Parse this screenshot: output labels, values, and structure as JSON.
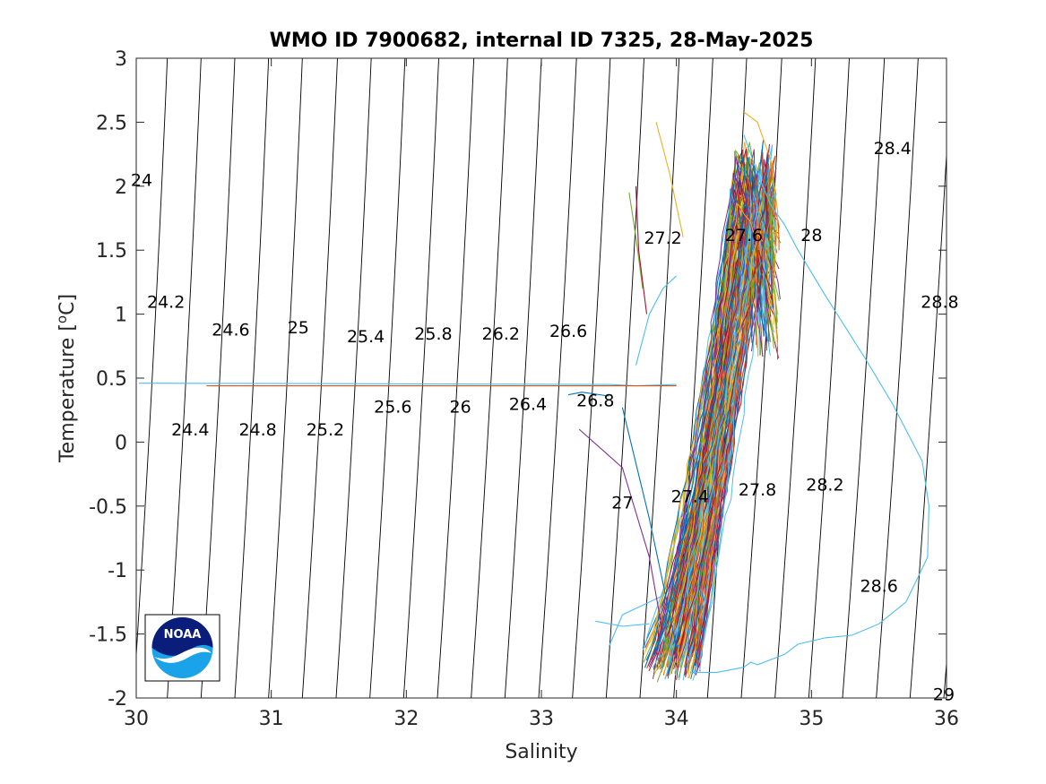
{
  "chart_data": {
    "type": "line",
    "title": "WMO ID 7900682, internal ID 7325, 28-May-2025",
    "xlabel": "Salinity",
    "ylabel_main": "Temperature [",
    "ylabel_sup": "o",
    "ylabel_tail": "C]",
    "xlim": [
      30,
      36
    ],
    "ylim": [
      -2,
      3
    ],
    "x_ticks": [
      {
        "value": 30,
        "label": "30"
      },
      {
        "value": 31,
        "label": "31"
      },
      {
        "value": 32,
        "label": "32"
      },
      {
        "value": 33,
        "label": "33"
      },
      {
        "value": 34,
        "label": "34"
      },
      {
        "value": 35,
        "label": "35"
      },
      {
        "value": 36,
        "label": "36"
      }
    ],
    "y_ticks": [
      {
        "value": -2,
        "label": "-2"
      },
      {
        "value": -1.5,
        "label": "-1.5"
      },
      {
        "value": -1,
        "label": "-1"
      },
      {
        "value": -0.5,
        "label": "-0.5"
      },
      {
        "value": 0,
        "label": "0"
      },
      {
        "value": 0.5,
        "label": "0.5"
      },
      {
        "value": 1,
        "label": "1"
      },
      {
        "value": 1.5,
        "label": "1.5"
      },
      {
        "value": 2,
        "label": "2"
      },
      {
        "value": 2.5,
        "label": "2.5"
      },
      {
        "value": 3,
        "label": "3"
      }
    ],
    "grid": false,
    "density_contour_color": "#000000",
    "density_labels": [
      {
        "label": "24",
        "s": 30.04,
        "t": 2.05
      },
      {
        "label": "24.2",
        "s": 30.22,
        "t": 1.1
      },
      {
        "label": "24.4",
        "s": 30.4,
        "t": 0.1
      },
      {
        "label": "24.6",
        "s": 30.7,
        "t": 0.88
      },
      {
        "label": "24.8",
        "s": 30.9,
        "t": 0.1
      },
      {
        "label": "25",
        "s": 31.2,
        "t": 0.9
      },
      {
        "label": "25.2",
        "s": 31.4,
        "t": 0.1
      },
      {
        "label": "25.4",
        "s": 31.7,
        "t": 0.83
      },
      {
        "label": "25.6",
        "s": 31.9,
        "t": 0.28
      },
      {
        "label": "25.8",
        "s": 32.2,
        "t": 0.85
      },
      {
        "label": "26",
        "s": 32.4,
        "t": 0.28
      },
      {
        "label": "26.2",
        "s": 32.7,
        "t": 0.85
      },
      {
        "label": "26.4",
        "s": 32.9,
        "t": 0.3
      },
      {
        "label": "26.6",
        "s": 33.2,
        "t": 0.87
      },
      {
        "label": "26.8",
        "s": 33.4,
        "t": 0.33
      },
      {
        "label": "27",
        "s": 33.6,
        "t": -0.47
      },
      {
        "label": "27.2",
        "s": 33.9,
        "t": 1.6
      },
      {
        "label": "27.4",
        "s": 34.1,
        "t": -0.42
      },
      {
        "label": "27.6",
        "s": 34.5,
        "t": 1.62
      },
      {
        "label": "27.8",
        "s": 34.6,
        "t": -0.37
      },
      {
        "label": "28",
        "s": 35.0,
        "t": 1.62
      },
      {
        "label": "28.2",
        "s": 35.1,
        "t": -0.33
      },
      {
        "label": "28.4",
        "s": 35.6,
        "t": 2.3
      },
      {
        "label": "28.6",
        "s": 35.5,
        "t": -1.12
      },
      {
        "label": "28.8",
        "s": 35.95,
        "t": 1.1
      },
      {
        "label": "29",
        "s": 35.98,
        "t": -1.97
      }
    ],
    "density_lines": [
      {
        "s_top": 29.97,
        "s_bot": 29.73
      },
      {
        "s_top": 30.23,
        "s_bot": 29.98
      },
      {
        "s_top": 30.48,
        "s_bot": 30.23
      },
      {
        "s_top": 30.73,
        "s_bot": 30.48
      },
      {
        "s_top": 30.98,
        "s_bot": 30.73
      },
      {
        "s_top": 31.23,
        "s_bot": 30.98
      },
      {
        "s_top": 31.49,
        "s_bot": 31.23
      },
      {
        "s_top": 31.74,
        "s_bot": 31.48
      },
      {
        "s_top": 31.99,
        "s_bot": 31.73
      },
      {
        "s_top": 32.24,
        "s_bot": 31.98
      },
      {
        "s_top": 32.5,
        "s_bot": 32.23
      },
      {
        "s_top": 32.75,
        "s_bot": 32.48
      },
      {
        "s_top": 33.0,
        "s_bot": 32.73
      },
      {
        "s_top": 33.26,
        "s_bot": 32.98
      },
      {
        "s_top": 33.51,
        "s_bot": 33.23
      },
      {
        "s_top": 33.76,
        "s_bot": 33.48
      },
      {
        "s_top": 34.02,
        "s_bot": 33.73
      },
      {
        "s_top": 34.27,
        "s_bot": 33.98
      },
      {
        "s_top": 34.52,
        "s_bot": 34.23
      },
      {
        "s_top": 34.78,
        "s_bot": 34.48
      },
      {
        "s_top": 35.03,
        "s_bot": 34.73
      },
      {
        "s_top": 35.28,
        "s_bot": 34.98
      },
      {
        "s_top": 35.54,
        "s_bot": 35.23
      },
      {
        "s_top": 35.79,
        "s_bot": 35.48
      },
      {
        "s_top": 36.04,
        "s_bot": 35.73
      },
      {
        "s_top": 36.3,
        "s_bot": 35.98
      }
    ],
    "profile_colors": [
      "#0072BD",
      "#D95319",
      "#EDB120",
      "#7E2F8E",
      "#77AC30",
      "#4DBEEE",
      "#A2142F"
    ],
    "series": [
      {
        "color": "#4DBEEE",
        "points": [
          [
            30.02,
            0.46
          ],
          [
            32.0,
            0.455
          ],
          [
            33.5,
            0.45
          ],
          [
            33.7,
            0.44
          ],
          [
            34.0,
            0.45
          ]
        ]
      },
      {
        "color": "#D95319",
        "points": [
          [
            30.52,
            0.44
          ],
          [
            32.0,
            0.44
          ],
          [
            33.5,
            0.44
          ],
          [
            33.8,
            0.44
          ],
          [
            34.0,
            0.44
          ]
        ]
      },
      {
        "color": "#4DBEEE",
        "points": [
          [
            34.1,
            -1.8
          ],
          [
            34.3,
            -1.8
          ],
          [
            34.5,
            -1.76
          ],
          [
            34.55,
            -1.72
          ],
          [
            34.6,
            -1.74
          ],
          [
            34.8,
            -1.66
          ],
          [
            34.9,
            -1.58
          ],
          [
            35.1,
            -1.53
          ],
          [
            35.3,
            -1.51
          ],
          [
            35.5,
            -1.42
          ],
          [
            35.7,
            -1.25
          ],
          [
            35.86,
            -0.9
          ],
          [
            35.87,
            -0.5
          ],
          [
            35.82,
            -0.15
          ],
          [
            35.6,
            0.3
          ],
          [
            35.4,
            0.65
          ],
          [
            35.1,
            1.15
          ],
          [
            34.9,
            1.5
          ],
          [
            34.8,
            1.7
          ],
          [
            34.7,
            1.85
          ],
          [
            34.6,
            2.1
          ],
          [
            34.5,
            2.4
          ]
        ]
      },
      {
        "color": "#4DBEEE",
        "points": [
          [
            33.5,
            -1.6
          ],
          [
            33.6,
            -1.35
          ],
          [
            33.7,
            -1.3
          ],
          [
            33.9,
            -1.2
          ]
        ]
      },
      {
        "color": "#4DBEEE",
        "points": [
          [
            33.4,
            -1.4
          ],
          [
            33.6,
            -1.44
          ],
          [
            33.8,
            -1.42
          ]
        ]
      },
      {
        "color": "#0072BD",
        "points": [
          [
            33.6,
            0.27
          ],
          [
            33.8,
            -0.6
          ],
          [
            33.9,
            -1.1
          ],
          [
            34.0,
            -1.6
          ]
        ]
      },
      {
        "color": "#7E2F8E",
        "points": [
          [
            33.28,
            0.1
          ],
          [
            33.6,
            -0.2
          ],
          [
            33.8,
            -0.9
          ],
          [
            33.9,
            -1.5
          ]
        ]
      },
      {
        "color": "#0072BD",
        "points": [
          [
            33.2,
            0.37
          ],
          [
            33.3,
            0.39
          ],
          [
            33.5,
            0.36
          ]
        ]
      },
      {
        "color": "#EDB120",
        "points": [
          [
            33.85,
            2.5
          ],
          [
            33.9,
            2.3
          ],
          [
            33.95,
            2.1
          ],
          [
            34.05,
            1.6
          ]
        ]
      },
      {
        "color": "#4DBEEE",
        "points": [
          [
            33.7,
            0.6
          ],
          [
            33.8,
            1.0
          ],
          [
            33.9,
            1.2
          ],
          [
            34.0,
            1.3
          ]
        ]
      },
      {
        "color": "#77AC30",
        "points": [
          [
            33.65,
            1.95
          ],
          [
            33.7,
            1.6
          ],
          [
            33.75,
            1.2
          ]
        ]
      },
      {
        "color": "#A2142F",
        "points": [
          [
            33.7,
            2.0
          ],
          [
            33.72,
            1.5
          ],
          [
            33.78,
            1.0
          ]
        ]
      },
      {
        "color": "#EDB120",
        "points": [
          [
            34.5,
            2.58
          ],
          [
            34.6,
            2.5
          ],
          [
            34.7,
            2.2
          ],
          [
            34.75,
            1.8
          ],
          [
            34.72,
            1.2
          ]
        ]
      }
    ]
  },
  "logo": {
    "text": "NOAA",
    "colors": {
      "navy": "#0a1d7a",
      "cyan": "#1aa3e8",
      "white": "#ffffff"
    }
  }
}
